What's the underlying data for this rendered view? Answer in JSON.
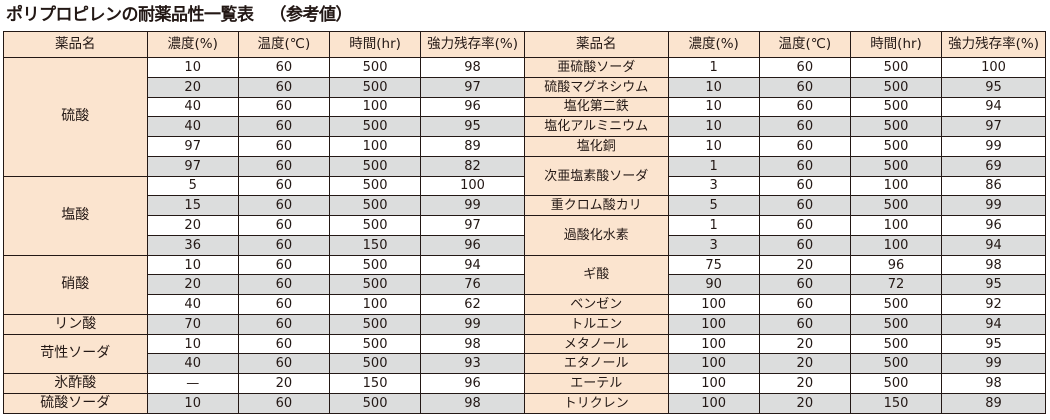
{
  "title": {
    "main": "ポリプロピレンの耐薬品性一覧表",
    "sub": "（参考値）"
  },
  "headers": [
    "薬品名",
    "濃度(%)",
    "温度(℃)",
    "時間(hr)",
    "強力残存率(%)",
    "薬品名",
    "濃度(%)",
    "温度(℃)",
    "時間(hr)",
    "強力残存率(%)"
  ],
  "left": [
    {
      "name": "硫酸",
      "rows": [
        [
          "10",
          "60",
          "500",
          "98"
        ],
        [
          "20",
          "60",
          "500",
          "97"
        ],
        [
          "40",
          "60",
          "100",
          "96"
        ],
        [
          "40",
          "60",
          "500",
          "95"
        ],
        [
          "97",
          "60",
          "100",
          "89"
        ],
        [
          "97",
          "60",
          "500",
          "82"
        ]
      ]
    },
    {
      "name": "塩酸",
      "rows": [
        [
          "5",
          "60",
          "500",
          "100"
        ],
        [
          "15",
          "60",
          "500",
          "99"
        ],
        [
          "20",
          "60",
          "500",
          "97"
        ],
        [
          "36",
          "60",
          "150",
          "96"
        ]
      ]
    },
    {
      "name": "硝酸",
      "rows": [
        [
          "10",
          "60",
          "500",
          "94"
        ],
        [
          "20",
          "60",
          "500",
          "76"
        ],
        [
          "40",
          "60",
          "100",
          "62"
        ]
      ]
    },
    {
      "name": "リン酸",
      "rows": [
        [
          "70",
          "60",
          "500",
          "99"
        ]
      ]
    },
    {
      "name": "苛性ソーダ",
      "rows": [
        [
          "10",
          "60",
          "500",
          "98"
        ],
        [
          "40",
          "60",
          "500",
          "93"
        ]
      ]
    },
    {
      "name": "氷酢酸",
      "rows": [
        [
          "—",
          "20",
          "150",
          "96"
        ]
      ]
    },
    {
      "name": "硫酸ソーダ",
      "rows": [
        [
          "10",
          "60",
          "500",
          "98"
        ]
      ]
    }
  ],
  "right": [
    {
      "name": "亜硫酸ソーダ",
      "rows": [
        [
          "1",
          "60",
          "500",
          "100"
        ]
      ]
    },
    {
      "name": "硫酸マグネシウム",
      "rows": [
        [
          "10",
          "60",
          "500",
          "95"
        ]
      ]
    },
    {
      "name": "塩化第二鉄",
      "rows": [
        [
          "10",
          "60",
          "500",
          "94"
        ]
      ]
    },
    {
      "name": "塩化アルミニウム",
      "rows": [
        [
          "10",
          "60",
          "500",
          "97"
        ]
      ]
    },
    {
      "name": "塩化銅",
      "rows": [
        [
          "10",
          "60",
          "500",
          "99"
        ]
      ]
    },
    {
      "name": "次亜塩素酸ソーダ",
      "rows": [
        [
          "1",
          "60",
          "500",
          "69"
        ],
        [
          "3",
          "60",
          "100",
          "86"
        ]
      ]
    },
    {
      "name": "重クロム酸カリ",
      "rows": [
        [
          "5",
          "60",
          "500",
          "99"
        ]
      ]
    },
    {
      "name": "過酸化水素",
      "rows": [
        [
          "1",
          "60",
          "100",
          "96"
        ],
        [
          "3",
          "60",
          "100",
          "94"
        ]
      ]
    },
    {
      "name": "ギ酸",
      "rows": [
        [
          "75",
          "20",
          "96",
          "98"
        ],
        [
          "90",
          "60",
          "72",
          "95"
        ]
      ]
    },
    {
      "name": "ベンゼン",
      "rows": [
        [
          "100",
          "60",
          "500",
          "92"
        ]
      ]
    },
    {
      "name": "トルエン",
      "rows": [
        [
          "100",
          "60",
          "500",
          "94"
        ]
      ]
    },
    {
      "name": "メタノール",
      "rows": [
        [
          "100",
          "20",
          "500",
          "95"
        ]
      ]
    },
    {
      "name": "エタノール",
      "rows": [
        [
          "100",
          "20",
          "500",
          "99"
        ]
      ]
    },
    {
      "name": "エーテル",
      "rows": [
        [
          "100",
          "20",
          "500",
          "98"
        ]
      ]
    },
    {
      "name": "トリクレン",
      "rows": [
        [
          "100",
          "20",
          "150",
          "89"
        ]
      ]
    }
  ]
}
